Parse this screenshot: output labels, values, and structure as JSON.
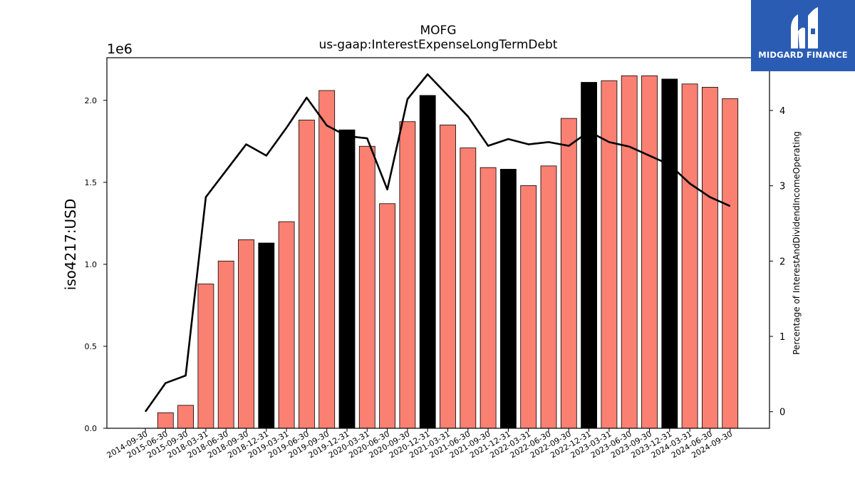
{
  "chart_data": {
    "type": "bar",
    "title": "MOFG",
    "subtitle": "us-gaap:InterestExpenseLongTermDebt",
    "ylabel": "iso4217:USD",
    "y_offset_label": "1e6",
    "y2label": "Percentage of InterestAndDividendIncomeOperating",
    "ylim": [
      0,
      2260000
    ],
    "y2lim": [
      -0.22,
      4.7
    ],
    "yticks": [
      "0.0",
      "0.5",
      "1.0",
      "1.5",
      "2.0"
    ],
    "y2ticks": [
      "0",
      "1",
      "2",
      "3",
      "4"
    ],
    "categories": [
      "2014-09-30",
      "2015-06-30",
      "2015-09-30",
      "2018-03-31",
      "2018-06-30",
      "2018-09-30",
      "2018-12-31",
      "2019-03-31",
      "2019-06-30",
      "2019-09-30",
      "2019-12-31",
      "2020-03-31",
      "2020-06-30",
      "2020-09-30",
      "2020-12-31",
      "2021-03-31",
      "2021-06-30",
      "2021-09-30",
      "2021-12-31",
      "2022-03-31",
      "2022-06-30",
      "2022-09-30",
      "2022-12-31",
      "2023-03-31",
      "2023-06-30",
      "2023-09-30",
      "2023-12-31",
      "2024-03-31",
      "2024-06-30",
      "2024-09-30"
    ],
    "series": [
      {
        "kind": "bar",
        "values": [
          0,
          95000,
          140000,
          880000,
          1020000,
          1150000,
          1130000,
          1260000,
          1880000,
          2060000,
          1820000,
          1720000,
          1370000,
          1870000,
          2030000,
          1850000,
          1710000,
          1590000,
          1580000,
          1480000,
          1600000,
          1890000,
          2110000,
          2120000,
          2150000,
          2150000,
          2130000,
          2100000,
          2080000,
          2010000
        ],
        "colors": [
          "#fa8072",
          "#fa8072",
          "#fa8072",
          "#fa8072",
          "#fa8072",
          "#fa8072",
          "#000000",
          "#fa8072",
          "#fa8072",
          "#fa8072",
          "#000000",
          "#fa8072",
          "#fa8072",
          "#fa8072",
          "#000000",
          "#fa8072",
          "#fa8072",
          "#fa8072",
          "#000000",
          "#fa8072",
          "#fa8072",
          "#fa8072",
          "#000000",
          "#fa8072",
          "#fa8072",
          "#fa8072",
          "#000000",
          "#fa8072",
          "#fa8072",
          "#fa8072"
        ]
      },
      {
        "kind": "line",
        "axis": "right",
        "color": "#000000",
        "values": [
          0,
          0.38,
          0.48,
          2.85,
          3.2,
          3.55,
          3.4,
          3.77,
          4.17,
          3.8,
          3.66,
          3.63,
          2.95,
          4.15,
          4.48,
          4.2,
          3.92,
          3.53,
          3.62,
          3.55,
          3.58,
          3.53,
          3.72,
          3.58,
          3.52,
          3.4,
          3.28,
          3.03,
          2.85,
          2.73
        ]
      }
    ]
  },
  "logo": {
    "text": "MIDGARD FINANCE"
  }
}
